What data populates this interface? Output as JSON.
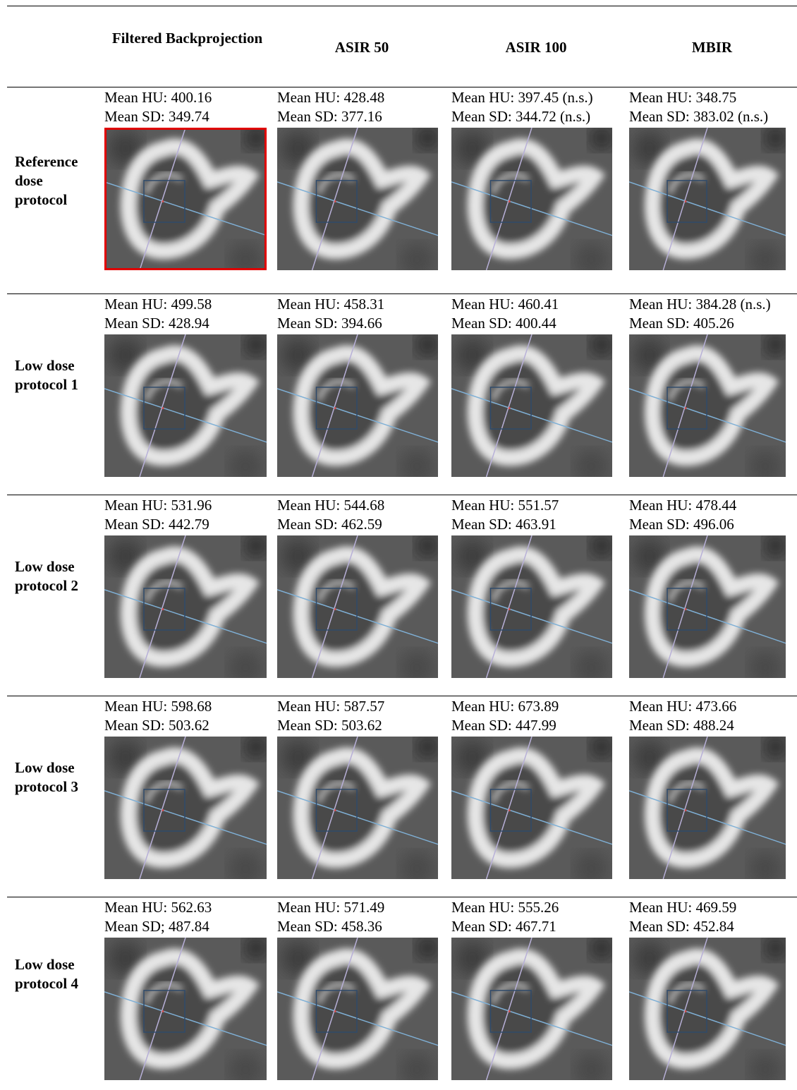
{
  "table": {
    "columns": [
      "Filtered Backprojection",
      "ASIR 50",
      "ASIR 100",
      "MBIR"
    ],
    "rows": [
      {
        "label": "Reference dose protocol",
        "cells": [
          {
            "hu": "Mean HU: 400.16",
            "sd": "Mean SD: 349.74"
          },
          {
            "hu": "Mean HU: 428.48",
            "sd": "Mean SD: 377.16"
          },
          {
            "hu": "Mean HU: 397.45 (n.s.)",
            "sd": "Mean SD: 344.72 (n.s.)"
          },
          {
            "hu": "Mean HU: 348.75",
            "sd": "Mean SD: 383.02 (n.s.)"
          }
        ]
      },
      {
        "label": "Low dose protocol 1",
        "cells": [
          {
            "hu": "Mean HU: 499.58",
            "sd": "Mean SD: 428.94"
          },
          {
            "hu": "Mean HU: 458.31",
            "sd": "Mean SD: 394.66"
          },
          {
            "hu": "Mean HU: 460.41",
            "sd": "Mean SD: 400.44"
          },
          {
            "hu": "Mean HU: 384.28 (n.s.)",
            "sd": "Mean SD: 405.26"
          }
        ]
      },
      {
        "label": "Low dose protocol 2",
        "cells": [
          {
            "hu": "Mean HU: 531.96",
            "sd": "Mean SD: 442.79"
          },
          {
            "hu": "Mean HU: 544.68",
            "sd": "Mean SD: 462.59"
          },
          {
            "hu": "Mean HU: 551.57",
            "sd": "Mean SD: 463.91"
          },
          {
            "hu": "Mean HU: 478.44",
            "sd": "Mean SD: 496.06"
          }
        ]
      },
      {
        "label": "Low dose protocol 3",
        "cells": [
          {
            "hu": "Mean HU: 598.68",
            "sd": "Mean SD: 503.62"
          },
          {
            "hu": "Mean HU: 587.57",
            "sd": "Mean SD: 503.62"
          },
          {
            "hu": "Mean HU: 673.89",
            "sd": "Mean SD: 447.99"
          },
          {
            "hu": "Mean HU: 473.66",
            "sd": "Mean SD: 488.24"
          }
        ]
      },
      {
        "label": "Low dose protocol 4",
        "cells": [
          {
            "hu": "Mean HU: 562.63",
            "sd": "Mean SD; 487.84"
          },
          {
            "hu": "Mean HU: 571.49",
            "sd": "Mean SD: 458.36"
          },
          {
            "hu": "Mean HU: 555.26",
            "sd": "Mean SD: 467.71"
          },
          {
            "hu": "Mean HU: 469.59",
            "sd": "Mean SD: 452.84"
          }
        ]
      }
    ]
  }
}
